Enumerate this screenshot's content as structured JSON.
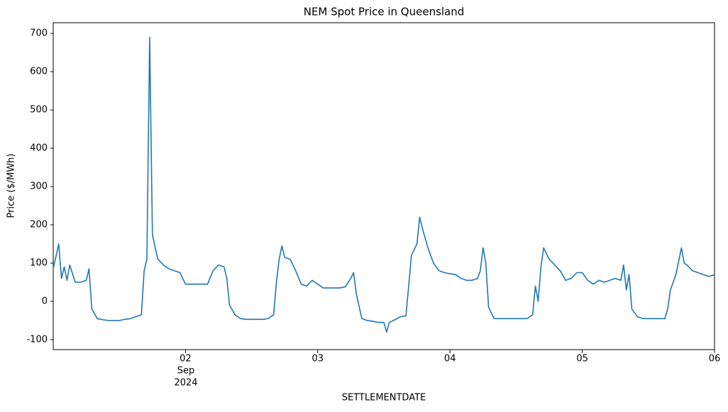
{
  "chart_data": {
    "type": "line",
    "title": "NEM Spot Price in Queensland",
    "xlabel": "SETTLEMENTDATE",
    "ylabel": "Price ($/MWh)",
    "color": "#1f77b4",
    "x": [
      "2024-09-01T00:00",
      "2024-09-01T01:00",
      "2024-09-01T01:30",
      "2024-09-01T02:00",
      "2024-09-01T02:30",
      "2024-09-01T03:00",
      "2024-09-01T04:00",
      "2024-09-01T05:00",
      "2024-09-01T06:00",
      "2024-09-01T06:30",
      "2024-09-01T07:00",
      "2024-09-01T08:00",
      "2024-09-01T09:00",
      "2024-09-01T10:00",
      "2024-09-01T11:00",
      "2024-09-01T12:00",
      "2024-09-01T13:00",
      "2024-09-01T14:00",
      "2024-09-01T15:00",
      "2024-09-01T16:00",
      "2024-09-01T16:30",
      "2024-09-01T17:00",
      "2024-09-01T17:30",
      "2024-09-01T18:00",
      "2024-09-01T18:30",
      "2024-09-01T19:00",
      "2024-09-01T20:00",
      "2024-09-01T21:00",
      "2024-09-01T22:00",
      "2024-09-01T23:00",
      "2024-09-02T00:00",
      "2024-09-02T01:00",
      "2024-09-02T02:00",
      "2024-09-02T03:00",
      "2024-09-02T04:00",
      "2024-09-02T05:00",
      "2024-09-02T06:00",
      "2024-09-02T07:00",
      "2024-09-02T07:30",
      "2024-09-02T08:00",
      "2024-09-02T09:00",
      "2024-09-02T10:00",
      "2024-09-02T11:00",
      "2024-09-02T12:00",
      "2024-09-02T13:00",
      "2024-09-02T14:00",
      "2024-09-02T15:00",
      "2024-09-02T16:00",
      "2024-09-02T16:30",
      "2024-09-02T17:00",
      "2024-09-02T17:30",
      "2024-09-02T18:00",
      "2024-09-02T19:00",
      "2024-09-02T20:00",
      "2024-09-02T21:00",
      "2024-09-02T22:00",
      "2024-09-02T23:00",
      "2024-09-03T00:00",
      "2024-09-03T01:00",
      "2024-09-03T02:00",
      "2024-09-03T03:00",
      "2024-09-03T04:00",
      "2024-09-03T05:00",
      "2024-09-03T06:00",
      "2024-09-03T06:30",
      "2024-09-03T07:00",
      "2024-09-03T08:00",
      "2024-09-03T09:00",
      "2024-09-03T10:00",
      "2024-09-03T11:00",
      "2024-09-03T12:00",
      "2024-09-03T12:30",
      "2024-09-03T13:00",
      "2024-09-03T14:00",
      "2024-09-03T15:00",
      "2024-09-03T16:00",
      "2024-09-03T16:30",
      "2024-09-03T17:00",
      "2024-09-03T18:00",
      "2024-09-03T18:30",
      "2024-09-03T19:00",
      "2024-09-03T20:00",
      "2024-09-03T21:00",
      "2024-09-03T22:00",
      "2024-09-03T23:00",
      "2024-09-04T00:00",
      "2024-09-04T01:00",
      "2024-09-04T02:00",
      "2024-09-04T03:00",
      "2024-09-04T04:00",
      "2024-09-04T05:00",
      "2024-09-04T05:30",
      "2024-09-04T06:00",
      "2024-09-04T06:30",
      "2024-09-04T07:00",
      "2024-09-04T08:00",
      "2024-09-04T09:00",
      "2024-09-04T10:00",
      "2024-09-04T11:00",
      "2024-09-04T12:00",
      "2024-09-04T13:00",
      "2024-09-04T14:00",
      "2024-09-04T15:00",
      "2024-09-04T15:30",
      "2024-09-04T16:00",
      "2024-09-04T16:30",
      "2024-09-04T17:00",
      "2024-09-04T18:00",
      "2024-09-04T19:00",
      "2024-09-04T20:00",
      "2024-09-04T21:00",
      "2024-09-04T22:00",
      "2024-09-04T23:00",
      "2024-09-05T00:00",
      "2024-09-05T01:00",
      "2024-09-05T02:00",
      "2024-09-05T03:00",
      "2024-09-05T04:00",
      "2024-09-05T05:00",
      "2024-09-05T06:00",
      "2024-09-05T07:00",
      "2024-09-05T07:30",
      "2024-09-05T08:00",
      "2024-09-05T08:30",
      "2024-09-05T09:00",
      "2024-09-05T10:00",
      "2024-09-05T11:00",
      "2024-09-05T12:00",
      "2024-09-05T13:00",
      "2024-09-05T14:00",
      "2024-09-05T15:00",
      "2024-09-05T15:30",
      "2024-09-05T16:00",
      "2024-09-05T17:00",
      "2024-09-05T18:00",
      "2024-09-05T18:30",
      "2024-09-05T19:00",
      "2024-09-05T20:00",
      "2024-09-05T21:00",
      "2024-09-05T22:00",
      "2024-09-05T23:00",
      "2024-09-06T00:00"
    ],
    "values": [
      85,
      150,
      60,
      90,
      55,
      95,
      50,
      50,
      55,
      85,
      -20,
      -45,
      -48,
      -50,
      -50,
      -50,
      -47,
      -45,
      -40,
      -35,
      80,
      110,
      690,
      175,
      140,
      110,
      95,
      85,
      80,
      75,
      45,
      45,
      45,
      45,
      45,
      80,
      95,
      90,
      60,
      -10,
      -35,
      -45,
      -47,
      -47,
      -47,
      -47,
      -45,
      -35,
      50,
      110,
      145,
      115,
      110,
      80,
      45,
      40,
      55,
      45,
      35,
      35,
      35,
      35,
      38,
      60,
      75,
      20,
      -45,
      -50,
      -52,
      -55,
      -55,
      -80,
      -55,
      -48,
      -40,
      -38,
      40,
      120,
      150,
      220,
      190,
      140,
      100,
      80,
      75,
      72,
      70,
      60,
      55,
      55,
      60,
      80,
      140,
      100,
      -15,
      -45,
      -45,
      -45,
      -45,
      -45,
      -45,
      -45,
      -35,
      40,
      0,
      90,
      140,
      110,
      95,
      80,
      55,
      60,
      75,
      75,
      55,
      45,
      55,
      50,
      55,
      60,
      55,
      95,
      30,
      70,
      -20,
      -40,
      -45,
      -45,
      -45,
      -45,
      -45,
      -20,
      30,
      70,
      140,
      100,
      95,
      80,
      75,
      70,
      65,
      70
    ],
    "xlim": [
      "2024-09-01T00:00",
      "2024-09-06T00:00"
    ],
    "xticks": [
      {
        "value": "2024-09-02T00:00",
        "label": "02"
      },
      {
        "value": "2024-09-03T00:00",
        "label": "03"
      },
      {
        "value": "2024-09-04T00:00",
        "label": "04"
      },
      {
        "value": "2024-09-05T00:00",
        "label": "05"
      },
      {
        "value": "2024-09-06T00:00",
        "label": "06"
      }
    ],
    "x_month_label": "Sep",
    "x_year_label": "2024",
    "ylim": [
      -126,
      728
    ],
    "yticks": [
      -100,
      0,
      100,
      200,
      300,
      400,
      500,
      600,
      700
    ]
  }
}
